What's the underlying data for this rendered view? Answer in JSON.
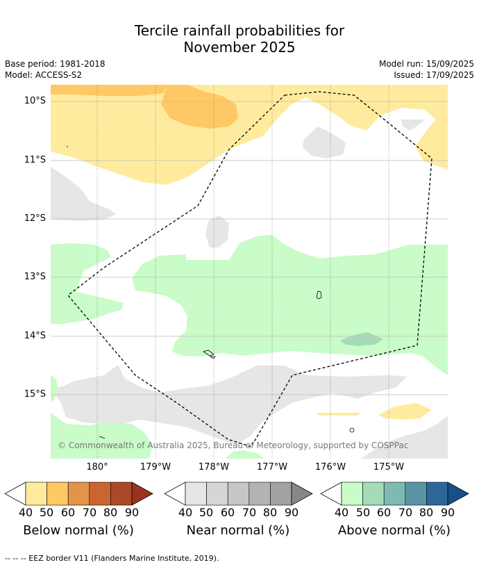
{
  "title_line1": "Tercile rainfall probabilities for",
  "title_line2": "November 2025",
  "base_period": "Base period: 1981-2018",
  "model": "Model: ACCESS-S2",
  "model_run": "Model run: 15/09/2025",
  "issued": "Issued: 17/09/2025",
  "lat_labels": [
    "10°S",
    "11°S",
    "12°S",
    "13°S",
    "14°S",
    "15°S"
  ],
  "lon_labels": [
    "180°",
    "179°W",
    "178°W",
    "177°W",
    "176°W",
    "175°W"
  ],
  "copyright": "© Commonwealth of Australia 2025, Bureau of Meteorology, supported by COSPPac",
  "legend": {
    "ticks": [
      "40",
      "50",
      "60",
      "70",
      "80",
      "90"
    ],
    "below": {
      "label": "Below normal (%)",
      "colors": [
        "#ffffff",
        "#ffeb9e",
        "#fec865",
        "#e1944a",
        "#cc6432",
        "#ab4a28",
        "#9a3220"
      ]
    },
    "near": {
      "label": "Near normal (%)",
      "colors": [
        "#ffffff",
        "#e6e6e6",
        "#d6d6d6",
        "#c6c6c6",
        "#b3b3b3",
        "#a2a2a2",
        "#878787"
      ]
    },
    "above": {
      "label": "Above normal (%)",
      "colors": [
        "#ffffff",
        "#c9fcc8",
        "#a6dbb8",
        "#7fb9b3",
        "#5b94a3",
        "#2f6699",
        "#174f8a"
      ]
    }
  },
  "footer": "--  --  -- EEZ border V11 (Flanders Marine Institute, 2019)."
}
